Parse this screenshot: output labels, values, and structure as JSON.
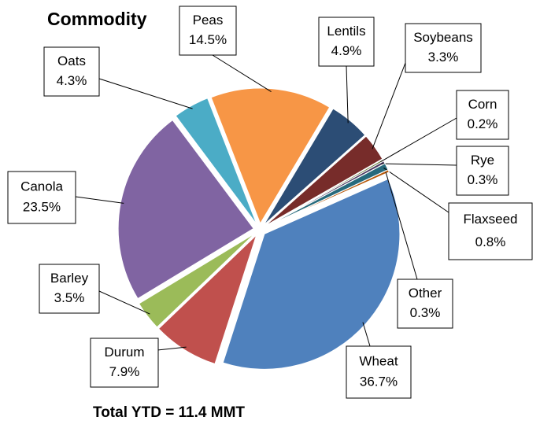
{
  "chart_data": {
    "type": "pie",
    "title": "Commodity",
    "annotation": "Total YTD = 11.4 MMT",
    "categories": [
      "Wheat",
      "Durum",
      "Barley",
      "Canola",
      "Oats",
      "Peas",
      "Lentils",
      "Soybeans",
      "Corn",
      "Rye",
      "Flaxseed",
      "Other"
    ],
    "values": [
      36.7,
      7.9,
      3.5,
      23.5,
      4.3,
      14.5,
      4.9,
      3.3,
      0.2,
      0.3,
      0.8,
      0.3
    ],
    "value_labels": [
      "36.7%",
      "7.9%",
      "3.5%",
      "23.5%",
      "4.3%",
      "14.5%",
      "4.9%",
      "3.3%",
      "0.2%",
      "0.3%",
      "0.8%",
      "0.3%"
    ],
    "colors": [
      "#4f81bd",
      "#c0504d",
      "#9bbb59",
      "#8064a2",
      "#4bacc6",
      "#f79646",
      "#2c4d75",
      "#772c2a",
      "#5f7530",
      "#4d3b62",
      "#276a7c",
      "#b65708"
    ]
  }
}
